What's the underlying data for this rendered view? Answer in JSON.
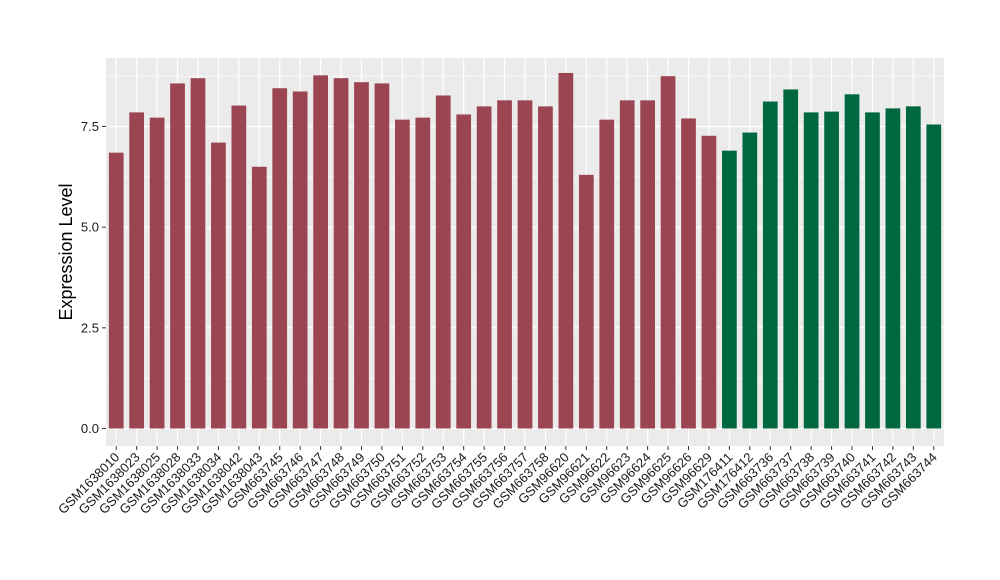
{
  "chart_data": {
    "type": "bar",
    "ylabel": "Expression Level",
    "xlabel": "",
    "ylim": [
      0,
      9.0
    ],
    "yticks": [
      "0.0",
      "2.5",
      "5.0",
      "7.5"
    ],
    "grid": true,
    "colors": {
      "group1": "#9b4452",
      "group2": "#00683f",
      "panel": "#ebebeb",
      "grid": "#ffffff"
    },
    "categories": [
      "GSM1638010",
      "GSM1638023",
      "GSM1638025",
      "GSM1638028",
      "GSM1638033",
      "GSM1638034",
      "GSM1638042",
      "GSM1638043",
      "GSM663745",
      "GSM663746",
      "GSM663747",
      "GSM663748",
      "GSM663749",
      "GSM663750",
      "GSM663751",
      "GSM663752",
      "GSM663753",
      "GSM663754",
      "GSM663755",
      "GSM663756",
      "GSM663757",
      "GSM663758",
      "GSM96620",
      "GSM96621",
      "GSM96622",
      "GSM96623",
      "GSM96624",
      "GSM96625",
      "GSM96626",
      "GSM96629",
      "GSM176411",
      "GSM176412",
      "GSM663736",
      "GSM663737",
      "GSM663738",
      "GSM663739",
      "GSM663740",
      "GSM663741",
      "GSM663742",
      "GSM663743",
      "GSM663744"
    ],
    "values": [
      6.85,
      7.85,
      7.72,
      8.57,
      8.7,
      7.1,
      8.02,
      6.5,
      8.45,
      8.37,
      8.77,
      8.7,
      8.6,
      8.57,
      7.67,
      7.72,
      8.27,
      7.8,
      8.0,
      8.15,
      8.15,
      8.0,
      8.83,
      6.3,
      7.67,
      8.15,
      8.15,
      8.75,
      7.7,
      7.27,
      6.9,
      7.35,
      8.12,
      8.42,
      7.85,
      7.87,
      8.3,
      7.85,
      7.95,
      8.0,
      7.55
    ],
    "groups": [
      1,
      1,
      1,
      1,
      1,
      1,
      1,
      1,
      1,
      1,
      1,
      1,
      1,
      1,
      1,
      1,
      1,
      1,
      1,
      1,
      1,
      1,
      1,
      1,
      1,
      1,
      1,
      1,
      1,
      1,
      2,
      2,
      2,
      2,
      2,
      2,
      2,
      2,
      2,
      2,
      2
    ]
  }
}
